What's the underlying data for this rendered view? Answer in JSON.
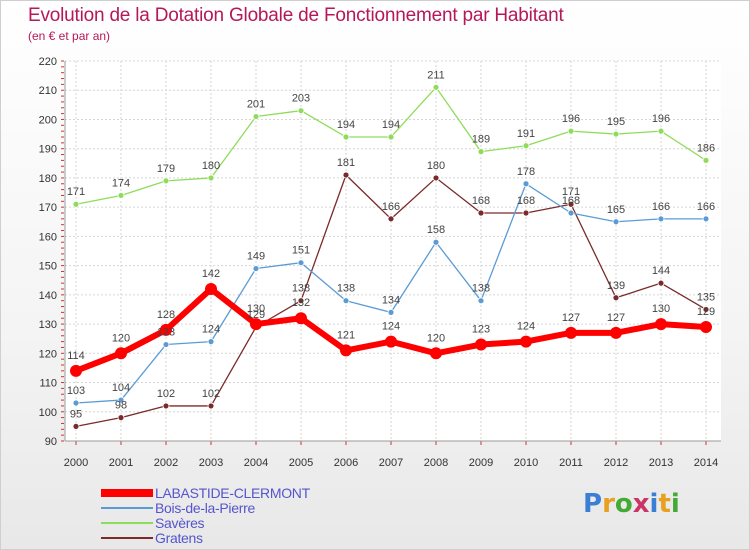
{
  "header": {
    "title": "Evolution de la Dotation Globale de Fonctionnement par Habitant",
    "subtitle": "(en € et par an)"
  },
  "logo": {
    "text": "Proxiti",
    "colors": [
      "#3a7fd5",
      "#e8a020",
      "#44aa33",
      "#cc3366",
      "#3a7fd5",
      "#e8a020",
      "#44aa33"
    ]
  },
  "chart_data": {
    "type": "line",
    "x": [
      "2000",
      "2001",
      "2002",
      "2003",
      "2004",
      "2005",
      "2006",
      "2007",
      "2008",
      "2009",
      "2010",
      "2011",
      "2012",
      "2013",
      "2014"
    ],
    "ylim": [
      90,
      220
    ],
    "yticks": [
      90,
      100,
      110,
      120,
      130,
      140,
      150,
      160,
      170,
      180,
      190,
      200,
      210,
      220
    ],
    "grid": true,
    "legend_position": "bottom-left",
    "series": [
      {
        "name": "LABASTIDE-CLERMONT",
        "color": "#ff0000",
        "values": [
          114,
          120,
          128,
          142,
          130,
          132,
          121,
          124,
          120,
          123,
          124,
          127,
          127,
          130,
          129
        ]
      },
      {
        "name": "Bois-de-la-Pierre",
        "color": "#5b9bd5",
        "values": [
          103,
          104,
          123,
          124,
          149,
          151,
          138,
          134,
          158,
          138,
          178,
          168,
          165,
          166,
          166
        ]
      },
      {
        "name": "Savères",
        "color": "#8fdc5a",
        "values": [
          171,
          174,
          179,
          180,
          201,
          203,
          194,
          194,
          211,
          189,
          191,
          196,
          195,
          196,
          186
        ]
      },
      {
        "name": "Gratens",
        "color": "#7a2a2a",
        "values": [
          95,
          98,
          102,
          102,
          129,
          138,
          181,
          166,
          180,
          168,
          168,
          171,
          139,
          144,
          135
        ]
      }
    ]
  }
}
